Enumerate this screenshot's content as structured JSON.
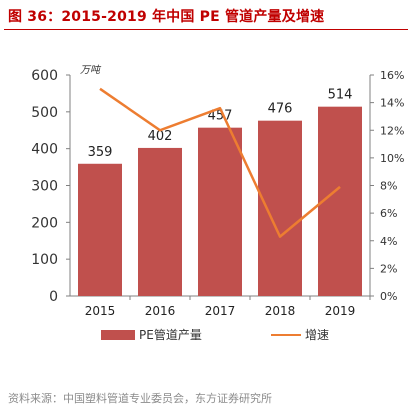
{
  "figure": {
    "title": "图 36：2015-2019 年中国 PE 管道产量及增速",
    "source": "资料来源：中国塑料管道专业委员会，东方证券研究所"
  },
  "colors": {
    "title": "#c00000",
    "bar": "#c0504d",
    "line": "#ed7d31",
    "source": "#8c8c8c"
  },
  "chart_data": {
    "type": "bar",
    "categories": [
      "2015",
      "2016",
      "2017",
      "2018",
      "2019"
    ],
    "series": [
      {
        "name": "PE管道产量",
        "type": "bar",
        "axis": "left",
        "values": [
          359,
          402,
          457,
          476,
          514
        ]
      },
      {
        "name": "增速",
        "type": "line",
        "axis": "right",
        "values": [
          15.0,
          12.0,
          13.6,
          4.3,
          7.9
        ]
      }
    ],
    "data_labels": [
      "359",
      "402",
      "457",
      "476",
      "514"
    ],
    "y_left": {
      "unit": "万吨",
      "ylim": [
        0,
        600
      ],
      "ticks": [
        "0",
        "100",
        "200",
        "300",
        "400",
        "500",
        "600"
      ]
    },
    "y_right": {
      "ylim": [
        0,
        16
      ],
      "ticks": [
        "0%",
        "2%",
        "4%",
        "6%",
        "8%",
        "10%",
        "12%",
        "14%",
        "16%"
      ]
    },
    "grid": false,
    "legend_position": "bottom"
  }
}
